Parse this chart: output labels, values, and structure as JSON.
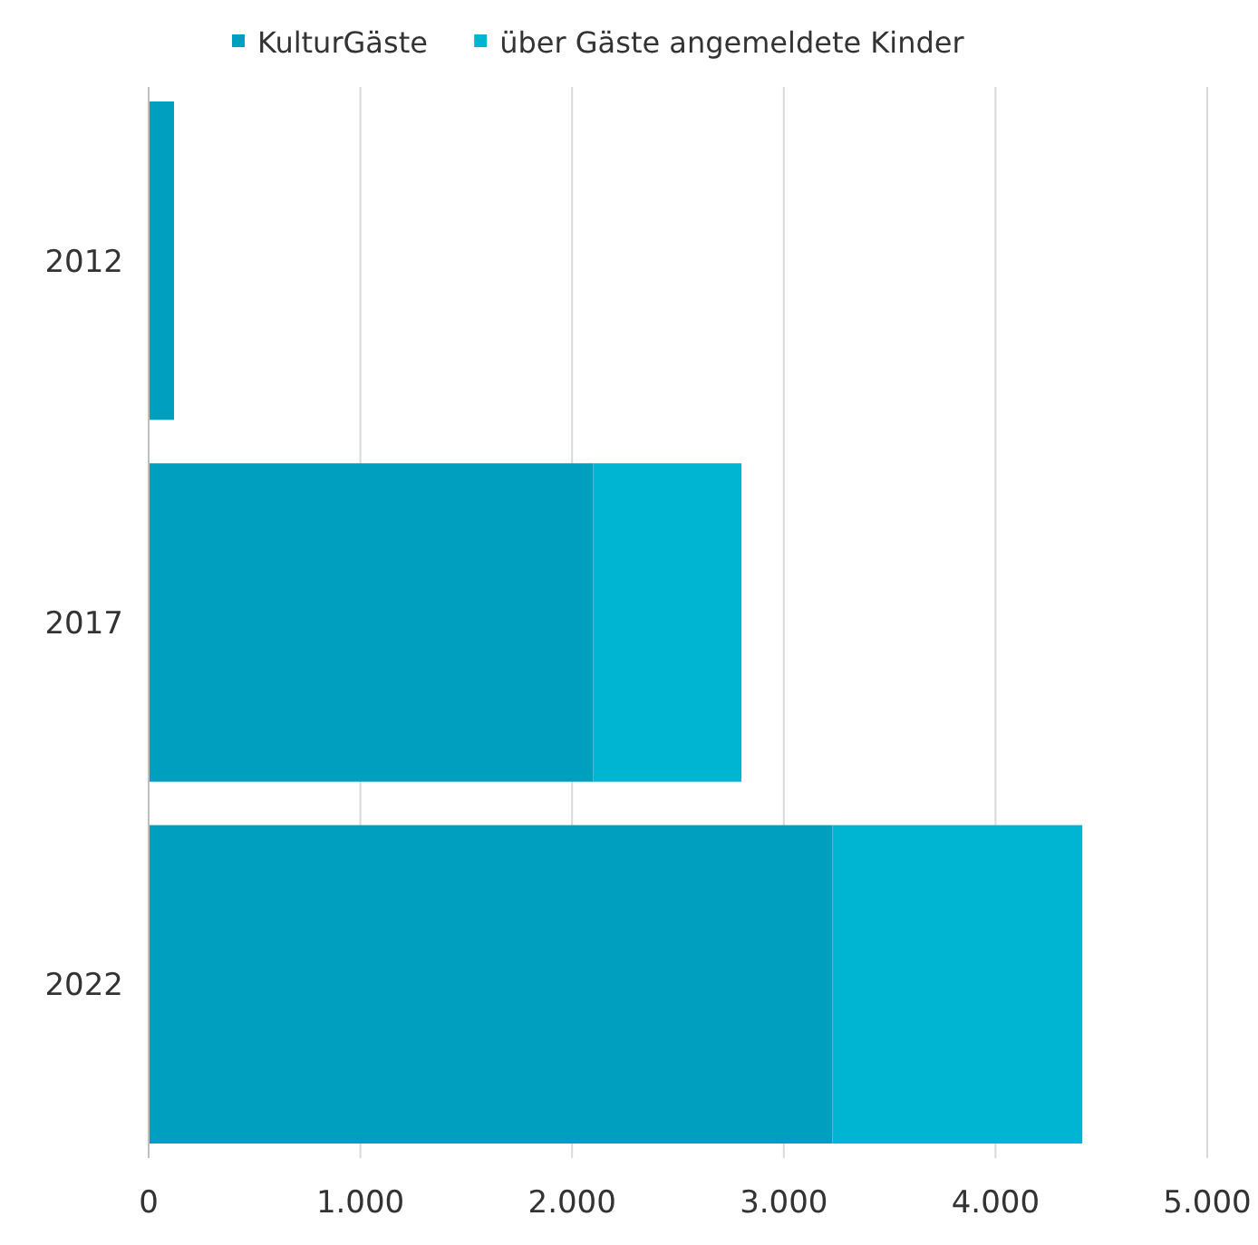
{
  "chart_data": {
    "type": "bar",
    "orientation": "horizontal",
    "stacked": true,
    "categories": [
      "2012",
      "2017",
      "2022"
    ],
    "series": [
      {
        "name": "KulturGäste",
        "color": "#009fc0",
        "values": [
          120,
          2100,
          3230
        ]
      },
      {
        "name": "über Gäste angemeldete Kinder",
        "color": "#00b5d1",
        "values": [
          0,
          700,
          1180
        ]
      }
    ],
    "xlim": [
      0,
      5000
    ],
    "xticks": [
      {
        "value": 0,
        "label": "0"
      },
      {
        "value": 1000,
        "label": "1.000"
      },
      {
        "value": 2000,
        "label": "2.000"
      },
      {
        "value": 3000,
        "label": "3.000"
      },
      {
        "value": 4000,
        "label": "4.000"
      },
      {
        "value": 5000,
        "label": "5.000"
      }
    ],
    "grid": "x",
    "legend": "top"
  }
}
